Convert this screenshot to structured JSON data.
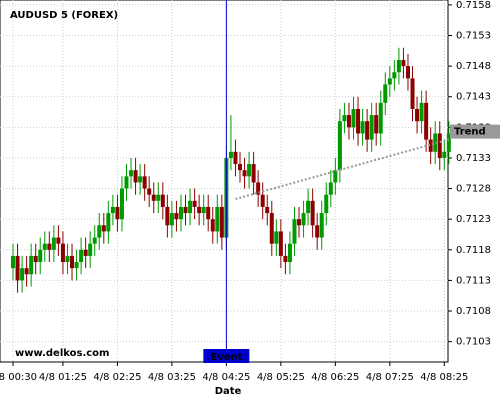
{
  "chart_data": {
    "type": "candlestick",
    "title": "AUDUSD 5 (FOREX)",
    "x_label": "Date",
    "watermark": "www.delkos.com",
    "up_color": "#009900",
    "down_color": "#8b0000",
    "grid": true,
    "ylim": [
      0.71,
      0.71588
    ],
    "yticks": [
      0.7103,
      0.7108,
      0.7113,
      0.7118,
      0.7123,
      0.7128,
      0.7133,
      0.7138,
      0.7143,
      0.7148,
      0.7153,
      0.7158
    ],
    "categories": [
      "4/8 00:30",
      null,
      null,
      null,
      null,
      null,
      null,
      null,
      null,
      null,
      null,
      "4/8 01:25",
      null,
      null,
      null,
      null,
      null,
      null,
      null,
      null,
      null,
      null,
      null,
      "4/8 02:25",
      null,
      null,
      null,
      null,
      null,
      null,
      null,
      null,
      null,
      null,
      null,
      "4/8 03:25",
      null,
      null,
      null,
      null,
      null,
      null,
      null,
      null,
      null,
      null,
      null,
      "4/8 04:25",
      null,
      null,
      null,
      null,
      null,
      null,
      null,
      null,
      null,
      null,
      null,
      "4/8 05:25",
      null,
      null,
      null,
      null,
      null,
      null,
      null,
      null,
      null,
      null,
      null,
      "4/8 06:25",
      null,
      null,
      null,
      null,
      null,
      null,
      null,
      null,
      null,
      null,
      null,
      "4/8 07:25",
      null,
      null,
      null,
      null,
      null,
      null,
      null,
      null,
      null,
      null,
      null,
      "4/8 08:25",
      null
    ],
    "open": [
      0.7115,
      0.7117,
      0.7113,
      0.7115,
      0.7114,
      0.7117,
      0.7116,
      0.7118,
      0.7119,
      0.7118,
      0.712,
      0.7119,
      0.7116,
      0.7117,
      0.7115,
      0.7116,
      0.7118,
      0.7117,
      0.7119,
      0.712,
      0.7122,
      0.7121,
      0.7124,
      0.7125,
      0.7123,
      0.7128,
      0.713,
      0.7131,
      0.7129,
      0.713,
      0.7128,
      0.7127,
      0.7126,
      0.7127,
      0.7125,
      0.7122,
      0.7124,
      0.7123,
      0.7125,
      0.7124,
      0.7126,
      0.7125,
      0.7124,
      0.7125,
      0.7123,
      0.7121,
      0.7125,
      0.712,
      0.7133,
      0.7134,
      0.7132,
      0.7131,
      0.713,
      0.7132,
      0.7129,
      0.7127,
      0.7125,
      0.7124,
      0.7119,
      0.7121,
      0.7117,
      0.7116,
      0.7119,
      0.7123,
      0.7122,
      0.7124,
      0.7126,
      0.7122,
      0.712,
      0.7124,
      0.7127,
      0.7129,
      0.7131,
      0.7139,
      0.714,
      0.7138,
      0.7141,
      0.7137,
      0.7139,
      0.7136,
      0.714,
      0.7137,
      0.7142,
      0.7145,
      0.7146,
      0.7147,
      0.7149,
      0.7148,
      0.7146,
      0.7141,
      0.7139,
      0.7142,
      0.7136,
      0.7134,
      0.7137,
      0.7133,
      0.7134
    ],
    "high": [
      0.7119,
      0.7119,
      0.7117,
      0.7117,
      0.7119,
      0.7119,
      0.712,
      0.7121,
      0.7121,
      0.7122,
      0.7122,
      0.7121,
      0.7119,
      0.7119,
      0.7118,
      0.712,
      0.712,
      0.7121,
      0.7122,
      0.7124,
      0.7124,
      0.7126,
      0.7127,
      0.7127,
      0.713,
      0.7132,
      0.7133,
      0.7133,
      0.7132,
      0.7132,
      0.713,
      0.7129,
      0.7129,
      0.7129,
      0.7127,
      0.7126,
      0.7126,
      0.7127,
      0.7127,
      0.7128,
      0.7128,
      0.7127,
      0.7127,
      0.7127,
      0.7125,
      0.7127,
      0.7127,
      0.7135,
      0.714,
      0.7136,
      0.7134,
      0.7133,
      0.7134,
      0.7134,
      0.7131,
      0.7129,
      0.7127,
      0.7126,
      0.7123,
      0.7123,
      0.7119,
      0.7121,
      0.7125,
      0.7125,
      0.7126,
      0.7128,
      0.7128,
      0.7124,
      0.7126,
      0.7129,
      0.7131,
      0.7133,
      0.7141,
      0.7142,
      0.7142,
      0.7143,
      0.7143,
      0.7141,
      0.7141,
      0.7142,
      0.7142,
      0.7144,
      0.7147,
      0.7148,
      0.7149,
      0.7151,
      0.7151,
      0.715,
      0.7148,
      0.7143,
      0.7144,
      0.7144,
      0.7138,
      0.7139,
      0.7139,
      0.7136,
      0.7139
    ],
    "low": [
      0.7113,
      0.7111,
      0.7111,
      0.7112,
      0.7112,
      0.7114,
      0.7114,
      0.7116,
      0.7116,
      0.7116,
      0.7117,
      0.7114,
      0.7114,
      0.7113,
      0.7113,
      0.7114,
      0.7115,
      0.7115,
      0.7117,
      0.7118,
      0.7119,
      0.7119,
      0.7122,
      0.7121,
      0.7121,
      0.7126,
      0.7128,
      0.7127,
      0.7127,
      0.7126,
      0.7125,
      0.7124,
      0.7124,
      0.7123,
      0.712,
      0.712,
      0.7121,
      0.7121,
      0.7122,
      0.7122,
      0.7123,
      0.7122,
      0.7122,
      0.7121,
      0.7119,
      0.7119,
      0.7118,
      0.7118,
      0.7131,
      0.713,
      0.7129,
      0.7128,
      0.7128,
      0.7127,
      0.7125,
      0.7123,
      0.7122,
      0.7117,
      0.7117,
      0.7115,
      0.7114,
      0.7114,
      0.7117,
      0.712,
      0.712,
      0.7122,
      0.712,
      0.7118,
      0.7118,
      0.7122,
      0.7125,
      0.7127,
      0.7129,
      0.7137,
      0.7136,
      0.7136,
      0.7135,
      0.7135,
      0.7134,
      0.7134,
      0.7135,
      0.7135,
      0.714,
      0.7143,
      0.7144,
      0.7145,
      0.7146,
      0.7144,
      0.7139,
      0.7137,
      0.7137,
      0.7134,
      0.7132,
      0.7132,
      0.7131,
      0.7131,
      0.7132
    ],
    "close": [
      0.7117,
      0.7113,
      0.7115,
      0.7114,
      0.7117,
      0.7116,
      0.7118,
      0.7119,
      0.7118,
      0.712,
      0.7119,
      0.7116,
      0.7117,
      0.7115,
      0.7116,
      0.7118,
      0.7117,
      0.7119,
      0.712,
      0.7122,
      0.7121,
      0.7124,
      0.7125,
      0.7123,
      0.7128,
      0.713,
      0.7131,
      0.7129,
      0.713,
      0.7128,
      0.7127,
      0.7126,
      0.7127,
      0.7125,
      0.7122,
      0.7124,
      0.7123,
      0.7125,
      0.7124,
      0.7126,
      0.7125,
      0.7124,
      0.7125,
      0.7123,
      0.7121,
      0.7125,
      0.712,
      0.7133,
      0.7134,
      0.7132,
      0.7131,
      0.713,
      0.7132,
      0.7129,
      0.7127,
      0.7125,
      0.7124,
      0.7119,
      0.7121,
      0.7117,
      0.7116,
      0.7119,
      0.7123,
      0.7122,
      0.7124,
      0.7126,
      0.7122,
      0.712,
      0.7124,
      0.7127,
      0.7129,
      0.7131,
      0.7139,
      0.714,
      0.7138,
      0.7141,
      0.7137,
      0.7139,
      0.7136,
      0.714,
      0.7137,
      0.7142,
      0.7145,
      0.7146,
      0.7147,
      0.7149,
      0.7148,
      0.7146,
      0.7141,
      0.7139,
      0.7142,
      0.7136,
      0.7134,
      0.7137,
      0.7133,
      0.7134,
      0.7137
    ],
    "event": {
      "label": "Event",
      "index": 47,
      "color": "#0000cc"
    },
    "trend": {
      "label": "Trend",
      "x": [
        49,
        96
      ],
      "values": [
        0.71263,
        0.7136
      ],
      "color": "#999999"
    }
  }
}
